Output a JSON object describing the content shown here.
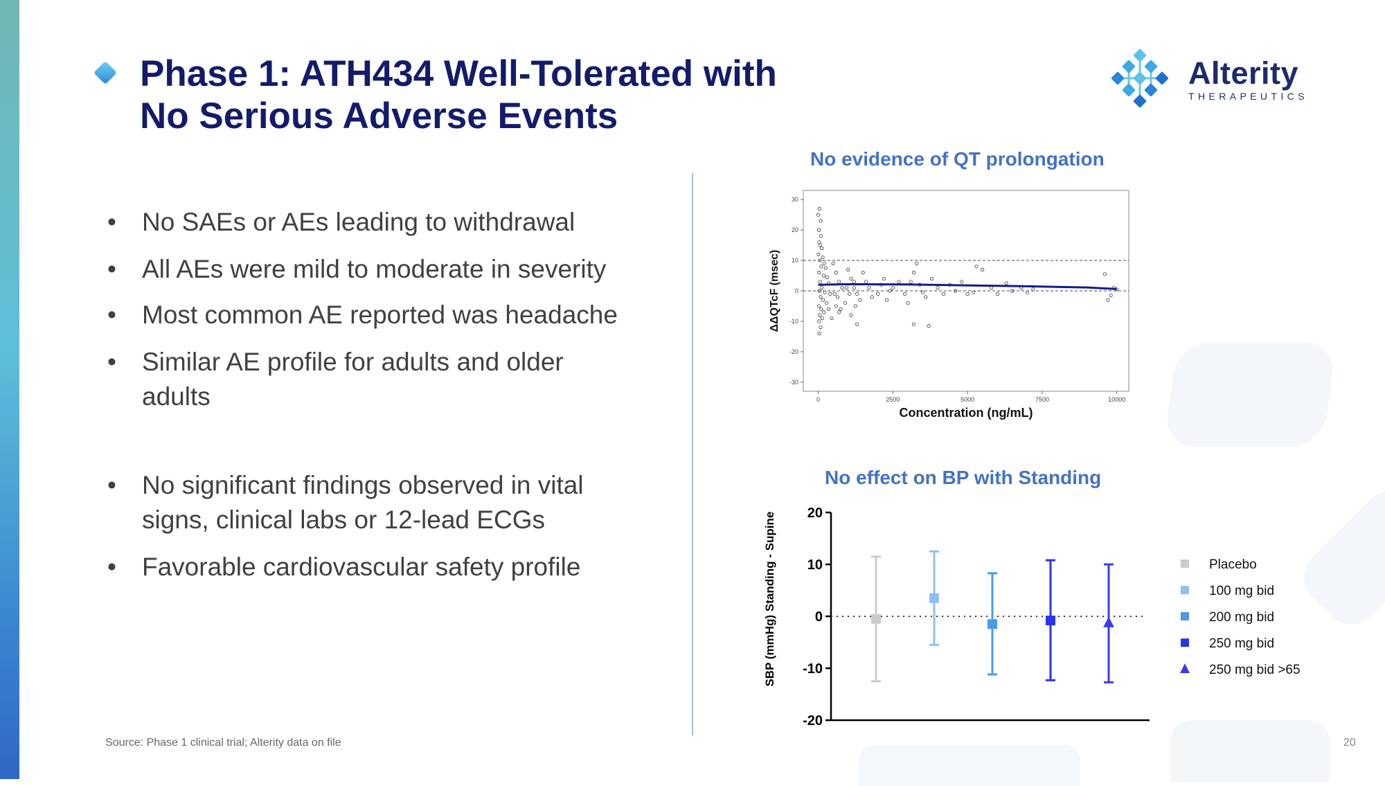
{
  "slide": {
    "title_line1": "Phase 1: ATH434 Well-Tolerated with",
    "title_line2": "No Serious Adverse Events",
    "logo": {
      "word": "Alterity",
      "sub": "THERAPEUTICS",
      "icon": "molecule-diamond-icon"
    },
    "bullet_glyph": "•",
    "bullets": [
      "No SAEs or AEs leading to withdrawal",
      "All AEs were mild to moderate in severity",
      "Most common AE reported was headache",
      "Similar AE profile for adults and older adults",
      "No significant findings observed in vital signs, clinical labs or 12-lead ECGs",
      "Favorable cardiovascular safety profile"
    ],
    "source": "Source: Phase 1 clinical trial; Alterity data on file",
    "page_number": "20"
  },
  "colors": {
    "title": "#131b6b",
    "chart_title": "#4472c4",
    "body_text": "#404040",
    "fit_line": "#131b8c",
    "placebo": "#cccccc",
    "dose100": "#8fbfee",
    "dose200": "#4b9be6",
    "dose250": "#2a36e6",
    "dose250_65": "#3a3af0"
  },
  "chart_data": [
    {
      "type": "scatter",
      "title": "No evidence of QT prolongation",
      "xlabel": "Concentration (ng/mL)",
      "ylabel": "ΔΔQTcF (msec)",
      "xlim": [
        -500,
        10400
      ],
      "ylim": [
        -33,
        33
      ],
      "xticks": [
        0,
        2500,
        5000,
        7500,
        10000
      ],
      "yticks": [
        30,
        20,
        10,
        0,
        -10,
        -20,
        -30
      ],
      "reference_lines": [
        10,
        0
      ],
      "grid": false,
      "fit_line": {
        "x": [
          0,
          1000,
          3000,
          5000,
          7000,
          9000,
          10000
        ],
        "y": [
          2.0,
          2.2,
          2.1,
          1.8,
          1.5,
          1.1,
          0.6
        ]
      },
      "points": [
        [
          0,
          25
        ],
        [
          40,
          27
        ],
        [
          80,
          23
        ],
        [
          20,
          20
        ],
        [
          90,
          18
        ],
        [
          30,
          16
        ],
        [
          70,
          15
        ],
        [
          120,
          14
        ],
        [
          10,
          12
        ],
        [
          150,
          11
        ],
        [
          60,
          10
        ],
        [
          200,
          9
        ],
        [
          100,
          8
        ],
        [
          250,
          7.5
        ],
        [
          30,
          6
        ],
        [
          180,
          5
        ],
        [
          300,
          4.5
        ],
        [
          60,
          3
        ],
        [
          350,
          2.5
        ],
        [
          120,
          1
        ],
        [
          40,
          0
        ],
        [
          220,
          -0.5
        ],
        [
          400,
          -1
        ],
        [
          80,
          -2
        ],
        [
          160,
          -3
        ],
        [
          280,
          -4
        ],
        [
          20,
          -5
        ],
        [
          100,
          -6
        ],
        [
          190,
          -7
        ],
        [
          50,
          -8
        ],
        [
          130,
          -9
        ],
        [
          30,
          -10
        ],
        [
          80,
          -12
        ],
        [
          40,
          -14
        ],
        [
          500,
          9
        ],
        [
          600,
          6
        ],
        [
          700,
          3
        ],
        [
          800,
          1
        ],
        [
          650,
          -2
        ],
        [
          900,
          -4
        ],
        [
          750,
          -6
        ],
        [
          1000,
          7
        ],
        [
          1100,
          4
        ],
        [
          1200,
          1
        ],
        [
          1300,
          -1
        ],
        [
          1400,
          -3
        ],
        [
          1250,
          -5
        ],
        [
          1100,
          -8
        ],
        [
          1300,
          -11
        ],
        [
          1500,
          6
        ],
        [
          1600,
          3
        ],
        [
          1700,
          1
        ],
        [
          1800,
          -2
        ],
        [
          2000,
          -1
        ],
        [
          2200,
          4
        ],
        [
          2100,
          2
        ],
        [
          2400,
          0
        ],
        [
          2300,
          -3
        ],
        [
          2500,
          1
        ],
        [
          2700,
          3
        ],
        [
          2900,
          -1
        ],
        [
          3000,
          -4
        ],
        [
          3200,
          6
        ],
        [
          3300,
          9
        ],
        [
          3100,
          3
        ],
        [
          3400,
          2
        ],
        [
          3500,
          -0.5
        ],
        [
          3600,
          -2
        ],
        [
          3700,
          -11.5
        ],
        [
          3200,
          -11
        ],
        [
          3800,
          4
        ],
        [
          4000,
          1
        ],
        [
          4200,
          -1
        ],
        [
          4400,
          2
        ],
        [
          4600,
          0
        ],
        [
          4800,
          3
        ],
        [
          5000,
          -1
        ],
        [
          5300,
          8
        ],
        [
          5500,
          7
        ],
        [
          5200,
          -0.5
        ],
        [
          5800,
          1
        ],
        [
          6000,
          -1
        ],
        [
          6300,
          2.5
        ],
        [
          6500,
          0
        ],
        [
          6800,
          1
        ],
        [
          7000,
          -0.5
        ],
        [
          7200,
          0.5
        ],
        [
          9600,
          5.5
        ],
        [
          9700,
          -3
        ],
        [
          9900,
          1
        ],
        [
          10000,
          0.5
        ],
        [
          9800,
          -1.5
        ],
        [
          350,
          -6
        ],
        [
          450,
          -9
        ],
        [
          550,
          -1
        ],
        [
          600,
          -5
        ],
        [
          700,
          -7
        ],
        [
          950,
          1
        ],
        [
          1050,
          -1
        ],
        [
          1200,
          3
        ]
      ]
    },
    {
      "type": "scatter",
      "title": "No effect on BP with Standing",
      "xlabel": "",
      "ylabel": "SBP (mmHg)  Standing - Supine",
      "ylim": [
        -20,
        20
      ],
      "yticks": [
        20,
        10,
        0,
        -10,
        -20
      ],
      "reference_lines": [
        0
      ],
      "legend": "right",
      "grid": false,
      "series": [
        {
          "name": "Placebo",
          "marker": "square",
          "color": "#cccccc",
          "mean": -0.5,
          "upper": 11.5,
          "lower": -12.5
        },
        {
          "name": "100 mg bid",
          "marker": "square",
          "color": "#8fbfee",
          "mean": 3.5,
          "upper": 12.5,
          "lower": -5.5
        },
        {
          "name": "200 mg bid",
          "marker": "square",
          "color": "#4b9be6",
          "mean": -1.5,
          "upper": 8.3,
          "lower": -11.2
        },
        {
          "name": "250 mg bid",
          "marker": "square",
          "color": "#2a36e6",
          "mean": -0.8,
          "upper": 10.8,
          "lower": -12.3
        },
        {
          "name": "250 mg bid >65",
          "marker": "triangle",
          "color": "#3a3af0",
          "mean": -1.3,
          "upper": 10.0,
          "lower": -12.7
        }
      ]
    }
  ]
}
